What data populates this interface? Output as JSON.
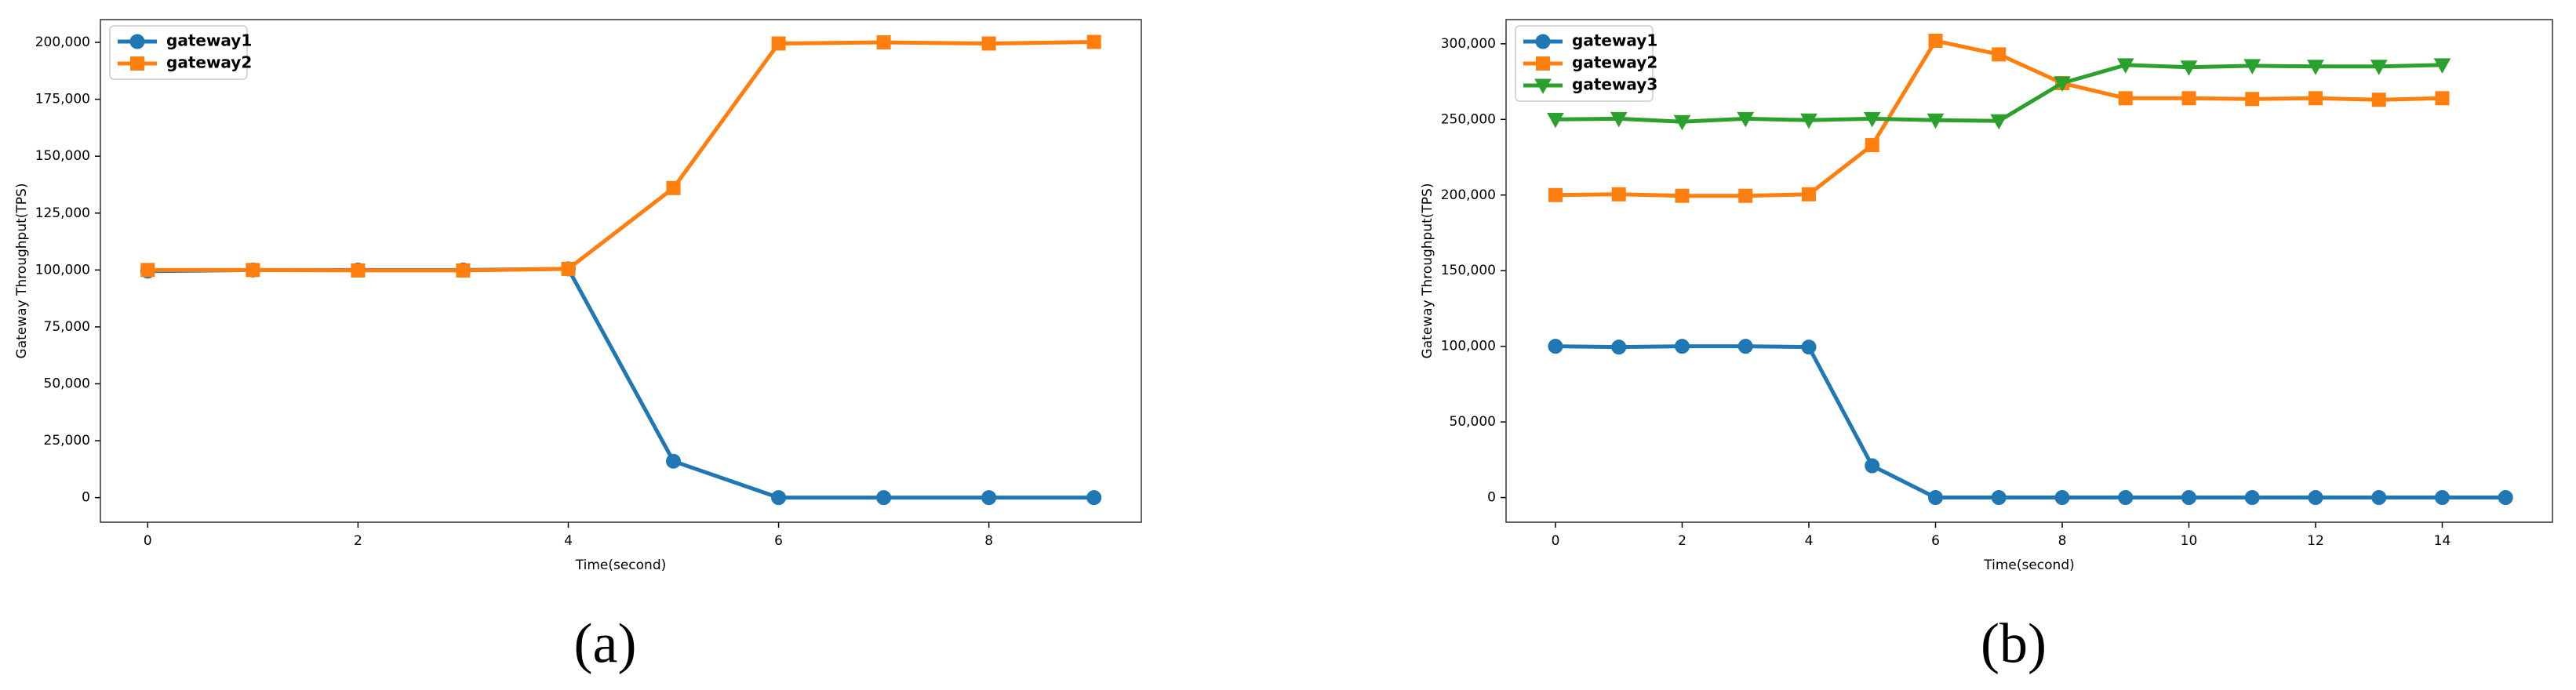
{
  "chart_data": [
    {
      "type": "line",
      "caption": "(a)",
      "xlabel": "Time(second)",
      "ylabel": "Gateway Throughput(TPS)",
      "x": [
        0,
        1,
        2,
        3,
        4,
        5,
        6,
        7,
        8,
        9
      ],
      "series": [
        {
          "name": "gateway1",
          "color": "#1f77b4",
          "marker": "circle",
          "values": [
            99500,
            100000,
            100000,
            100000,
            100500,
            16000,
            0,
            0,
            0,
            0
          ]
        },
        {
          "name": "gateway2",
          "color": "#ff7f0e",
          "marker": "square",
          "values": [
            100000,
            100000,
            99800,
            99800,
            100500,
            136000,
            199500,
            200000,
            199500,
            200200
          ]
        }
      ],
      "xlim": [
        -0.45,
        9.45
      ],
      "xticks": [
        0,
        2,
        4,
        6,
        8
      ],
      "ylim": [
        -10800,
        210000
      ],
      "yticks": [
        0,
        {
          "value": 25000,
          "label": "25,000"
        },
        {
          "value": 50000,
          "label": "50,000"
        },
        {
          "value": 75000,
          "label": "75,000"
        },
        {
          "value": 100000,
          "label": "100,000"
        },
        {
          "value": 125000,
          "label": "125,000"
        },
        {
          "value": 150000,
          "label": "150,000"
        },
        {
          "value": 175000,
          "label": "175,000"
        },
        {
          "value": 200000,
          "label": "200,000"
        }
      ],
      "legend": "upper left",
      "grid": false
    },
    {
      "type": "line",
      "caption": "(b)",
      "xlabel": "Time(second)",
      "ylabel": "Gateway Throughput(TPS)",
      "x": [
        0,
        1,
        2,
        3,
        4,
        5,
        6,
        7,
        8,
        9,
        10,
        11,
        12,
        13,
        14,
        15
      ],
      "series": [
        {
          "name": "gateway1",
          "color": "#1f77b4",
          "marker": "circle",
          "values": [
            100000,
            99500,
            100000,
            100000,
            99500,
            21000,
            0,
            0,
            0,
            0,
            0,
            0,
            0,
            0,
            0,
            0
          ]
        },
        {
          "name": "gateway2",
          "color": "#ff7f0e",
          "marker": "square",
          "values": [
            200000,
            200500,
            199500,
            199500,
            200500,
            233000,
            302000,
            293000,
            274000,
            264000,
            264000,
            263500,
            264000,
            263000,
            264000,
            null
          ]
        },
        {
          "name": "gateway3",
          "color": "#2ca02c",
          "marker": "triangle-down",
          "values": [
            250000,
            250500,
            248500,
            250500,
            249500,
            250500,
            249500,
            249000,
            274000,
            286000,
            284500,
            285500,
            285000,
            285000,
            286000,
            null
          ]
        }
      ],
      "xlim": [
        -0.78,
        15.74
      ],
      "xticks": [
        0,
        2,
        4,
        6,
        8,
        10,
        12,
        14
      ],
      "ylim": [
        -16300,
        316000
      ],
      "yticks": [
        0,
        {
          "value": 50000,
          "label": "50,000"
        },
        {
          "value": 100000,
          "label": "100,000"
        },
        {
          "value": 150000,
          "label": "150,000"
        },
        {
          "value": 200000,
          "label": "200,000"
        },
        {
          "value": 250000,
          "label": "250,000"
        },
        {
          "value": 300000,
          "label": "300,000"
        }
      ],
      "legend": "upper left",
      "grid": false
    }
  ]
}
